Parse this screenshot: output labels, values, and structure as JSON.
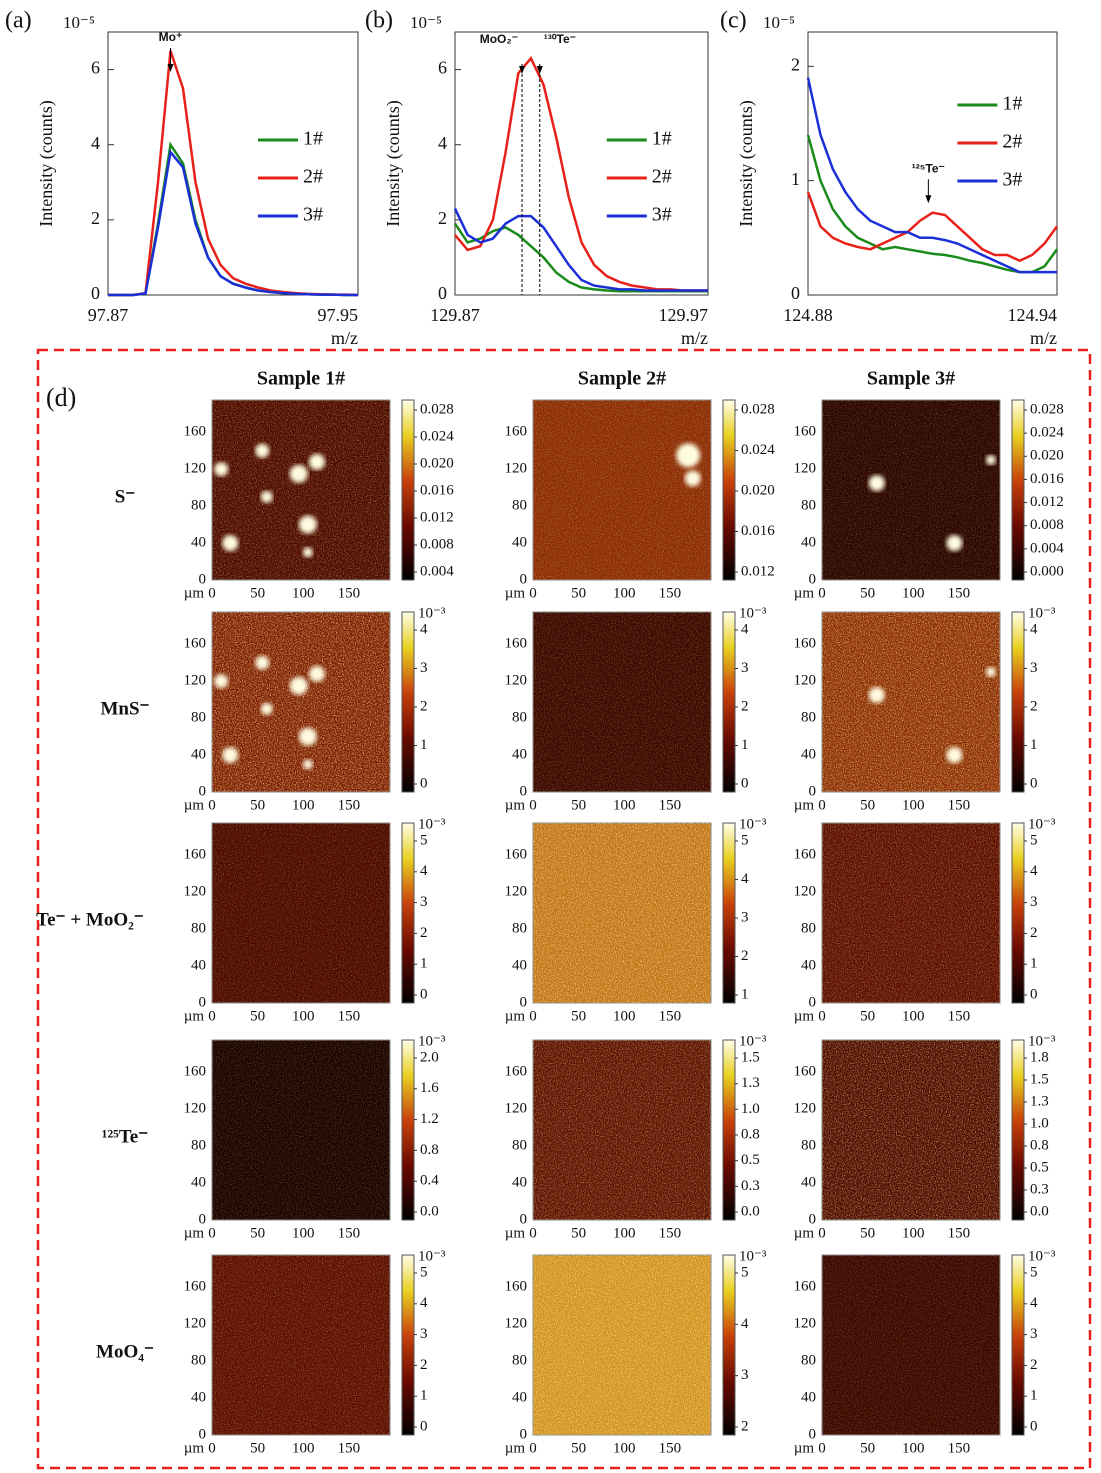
{
  "chart_data": [
    {
      "type": "line",
      "panel_label": "(a)",
      "y_label": "Intensity (counts)",
      "x_label": "m/z",
      "y_multiplier": "10⁻⁵",
      "x": [
        97.87,
        97.874,
        97.878,
        97.882,
        97.886,
        97.89,
        97.894,
        97.898,
        97.902,
        97.906,
        97.91,
        97.914,
        97.918,
        97.922,
        97.926,
        97.93,
        97.934,
        97.938,
        97.942,
        97.946,
        97.95
      ],
      "xlim": [
        97.87,
        97.95
      ],
      "xticks": [
        97.87,
        97.95
      ],
      "ylim": [
        0,
        7
      ],
      "yticks": [
        0,
        2,
        4,
        6
      ],
      "legend": "right",
      "series": [
        {
          "name": "1#",
          "color": "#1a8a1a",
          "values": [
            0,
            0,
            0,
            0.04,
            1.9,
            4.0,
            3.5,
            2.0,
            1.0,
            0.5,
            0.3,
            0.2,
            0.12,
            0.08,
            0.05,
            0.03,
            0.02,
            0.01,
            0.01,
            0,
            0
          ]
        },
        {
          "name": "2#",
          "color": "#e8201a",
          "values": [
            0,
            0,
            0,
            0.05,
            3.0,
            6.5,
            5.5,
            3.0,
            1.5,
            0.8,
            0.45,
            0.3,
            0.2,
            0.12,
            0.08,
            0.05,
            0.03,
            0.02,
            0.01,
            0.01,
            0
          ]
        },
        {
          "name": "3#",
          "color": "#1a2fd6",
          "values": [
            0,
            0,
            0,
            0.04,
            1.8,
            3.8,
            3.4,
            1.9,
            1.0,
            0.5,
            0.3,
            0.2,
            0.12,
            0.08,
            0.05,
            0.03,
            0.02,
            0.01,
            0.01,
            0,
            0
          ]
        }
      ],
      "markers": [
        {
          "label": "Mo⁺",
          "x": 97.89,
          "style": "arrow"
        }
      ]
    },
    {
      "type": "line",
      "panel_label": "(b)",
      "y_label": "Intensity (counts)",
      "x_label": "m/z",
      "y_multiplier": "10⁻⁵",
      "x": [
        129.87,
        129.875,
        129.88,
        129.885,
        129.89,
        129.895,
        129.9,
        129.905,
        129.91,
        129.915,
        129.92,
        129.925,
        129.93,
        129.935,
        129.94,
        129.945,
        129.95,
        129.955,
        129.96,
        129.965,
        129.97
      ],
      "xlim": [
        129.87,
        129.97
      ],
      "xticks": [
        129.87,
        129.97
      ],
      "ylim": [
        0,
        7
      ],
      "yticks": [
        0,
        2,
        4,
        6
      ],
      "legend": "right",
      "series": [
        {
          "name": "1#",
          "color": "#1a8a1a",
          "values": [
            1.9,
            1.4,
            1.5,
            1.7,
            1.8,
            1.6,
            1.3,
            1.0,
            0.6,
            0.35,
            0.2,
            0.15,
            0.12,
            0.1,
            0.1,
            0.1,
            0.1,
            0.1,
            0.1,
            0.1,
            0.1
          ]
        },
        {
          "name": "2#",
          "color": "#e8201a",
          "values": [
            1.6,
            1.2,
            1.3,
            2.0,
            3.8,
            5.9,
            6.3,
            5.6,
            4.2,
            2.6,
            1.4,
            0.8,
            0.5,
            0.35,
            0.25,
            0.2,
            0.15,
            0.15,
            0.12,
            0.12,
            0.12
          ]
        },
        {
          "name": "3#",
          "color": "#1a2fd6",
          "values": [
            2.3,
            1.6,
            1.4,
            1.5,
            1.9,
            2.1,
            2.1,
            1.8,
            1.3,
            0.8,
            0.4,
            0.25,
            0.2,
            0.15,
            0.15,
            0.12,
            0.12,
            0.12,
            0.12,
            0.12,
            0.12
          ]
        }
      ],
      "markers": [
        {
          "label": "MoO₂⁻",
          "x": 129.8965,
          "style": "dashed"
        },
        {
          "label": "¹³⁰Te⁻",
          "x": 129.9035,
          "style": "dashed"
        }
      ]
    },
    {
      "type": "line",
      "panel_label": "(c)",
      "y_label": "Intensity (counts)",
      "x_label": "m/z",
      "y_multiplier": "10⁻⁵",
      "x": [
        124.88,
        124.883,
        124.886,
        124.889,
        124.892,
        124.895,
        124.898,
        124.901,
        124.904,
        124.907,
        124.91,
        124.913,
        124.916,
        124.919,
        124.922,
        124.925,
        124.928,
        124.931,
        124.934,
        124.937,
        124.94
      ],
      "xlim": [
        124.88,
        124.94
      ],
      "xticks": [
        124.88,
        124.94
      ],
      "ylim": [
        0,
        2.3
      ],
      "yticks": [
        0,
        1,
        2
      ],
      "legend": "upper right",
      "series": [
        {
          "name": "1#",
          "color": "#1a8a1a",
          "values": [
            1.4,
            1.0,
            0.75,
            0.6,
            0.5,
            0.45,
            0.4,
            0.42,
            0.4,
            0.38,
            0.36,
            0.35,
            0.33,
            0.3,
            0.28,
            0.25,
            0.22,
            0.2,
            0.2,
            0.25,
            0.4
          ]
        },
        {
          "name": "2#",
          "color": "#e8201a",
          "values": [
            0.9,
            0.6,
            0.5,
            0.45,
            0.42,
            0.4,
            0.45,
            0.5,
            0.55,
            0.65,
            0.72,
            0.7,
            0.6,
            0.5,
            0.4,
            0.35,
            0.35,
            0.3,
            0.35,
            0.45,
            0.6
          ]
        },
        {
          "name": "3#",
          "color": "#1a2fd6",
          "values": [
            1.9,
            1.4,
            1.1,
            0.9,
            0.75,
            0.65,
            0.6,
            0.55,
            0.55,
            0.5,
            0.5,
            0.48,
            0.45,
            0.4,
            0.35,
            0.3,
            0.25,
            0.2,
            0.2,
            0.2,
            0.2
          ]
        }
      ],
      "markers": [
        {
          "label": "¹²⁵Te⁻",
          "x": 124.909,
          "style": "arrow"
        }
      ]
    }
  ],
  "maps": {
    "panel_label": "(d)",
    "columns": [
      "Sample 1#",
      "Sample 2#",
      "Sample 3#"
    ],
    "x_ticks": [
      "0",
      "50",
      "100",
      "150"
    ],
    "y_ticks": [
      "0",
      "40",
      "80",
      "120",
      "160"
    ],
    "unit": "µm",
    "rows": [
      {
        "label": "S⁻",
        "exponent": null,
        "colorbars": [
          [
            "0.028",
            "0.024",
            "0.020",
            "0.016",
            "0.012",
            "0.008",
            "0.004"
          ],
          [
            "0.028",
            "0.024",
            "0.020",
            "0.016",
            "0.012"
          ],
          [
            "0.028",
            "0.024",
            "0.020",
            "0.016",
            "0.012",
            "0.008",
            "0.004",
            "0.000"
          ]
        ]
      },
      {
        "label": "MnS⁻",
        "exponent": "10⁻³",
        "colorbars": [
          [
            "4",
            "3",
            "2",
            "1",
            "0"
          ],
          [
            "4",
            "3",
            "2",
            "1",
            "0"
          ],
          [
            "4",
            "3",
            "2",
            "1",
            "0"
          ]
        ]
      },
      {
        "label": "Te⁻ + MoO₂⁻",
        "exponent": "10⁻³",
        "colorbars": [
          [
            "5",
            "4",
            "3",
            "2",
            "1",
            "0"
          ],
          [
            "5",
            "4",
            "3",
            "2",
            "1"
          ],
          [
            "5",
            "4",
            "3",
            "2",
            "1",
            "0"
          ]
        ]
      },
      {
        "label": "¹²⁵Te⁻",
        "exponent": "10⁻³",
        "colorbars": [
          [
            "2.0",
            "1.6",
            "1.2",
            "0.8",
            "0.4",
            "0.0"
          ],
          [
            "1.5",
            "1.3",
            "1.0",
            "0.8",
            "0.5",
            "0.3",
            "0.0"
          ],
          [
            "1.8",
            "1.5",
            "1.3",
            "1.0",
            "0.8",
            "0.5",
            "0.3",
            "0.0"
          ]
        ]
      },
      {
        "label": "MoO₄⁻",
        "exponent": "10⁻³",
        "colorbars": [
          [
            "5",
            "4",
            "3",
            "2",
            "1",
            "0"
          ],
          [
            "5",
            "4",
            "3",
            "2"
          ],
          [
            "5",
            "4",
            "3",
            "2",
            "1",
            "0"
          ]
        ]
      }
    ]
  }
}
